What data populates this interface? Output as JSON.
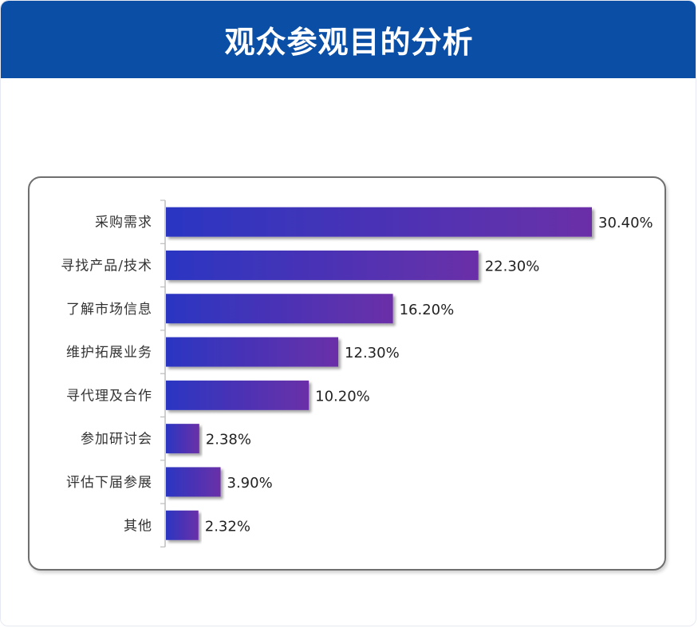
{
  "header": {
    "title": "观众参观目的分析"
  },
  "colors": {
    "header_bg": "#0a4ea6",
    "bar_start": "#2a36c2",
    "bar_end": "#6a2fa8"
  },
  "chart_data": {
    "type": "bar",
    "orientation": "horizontal",
    "title": "",
    "xlabel": "",
    "ylabel": "",
    "xlim": [
      0,
      31
    ],
    "grid": false,
    "categories": [
      "采购需求",
      "寻找产品/技术",
      "了解市场信息",
      "维护拓展业务",
      "寻代理及合作",
      "参加研讨会",
      "评估下届参展",
      "其他"
    ],
    "values": [
      30.4,
      22.3,
      16.2,
      12.3,
      10.2,
      2.38,
      3.9,
      2.32
    ],
    "value_labels": [
      "30.40%",
      "22.30%",
      "16.20%",
      "12.30%",
      "10.20%",
      "2.38%",
      "3.90%",
      "2.32%"
    ]
  }
}
